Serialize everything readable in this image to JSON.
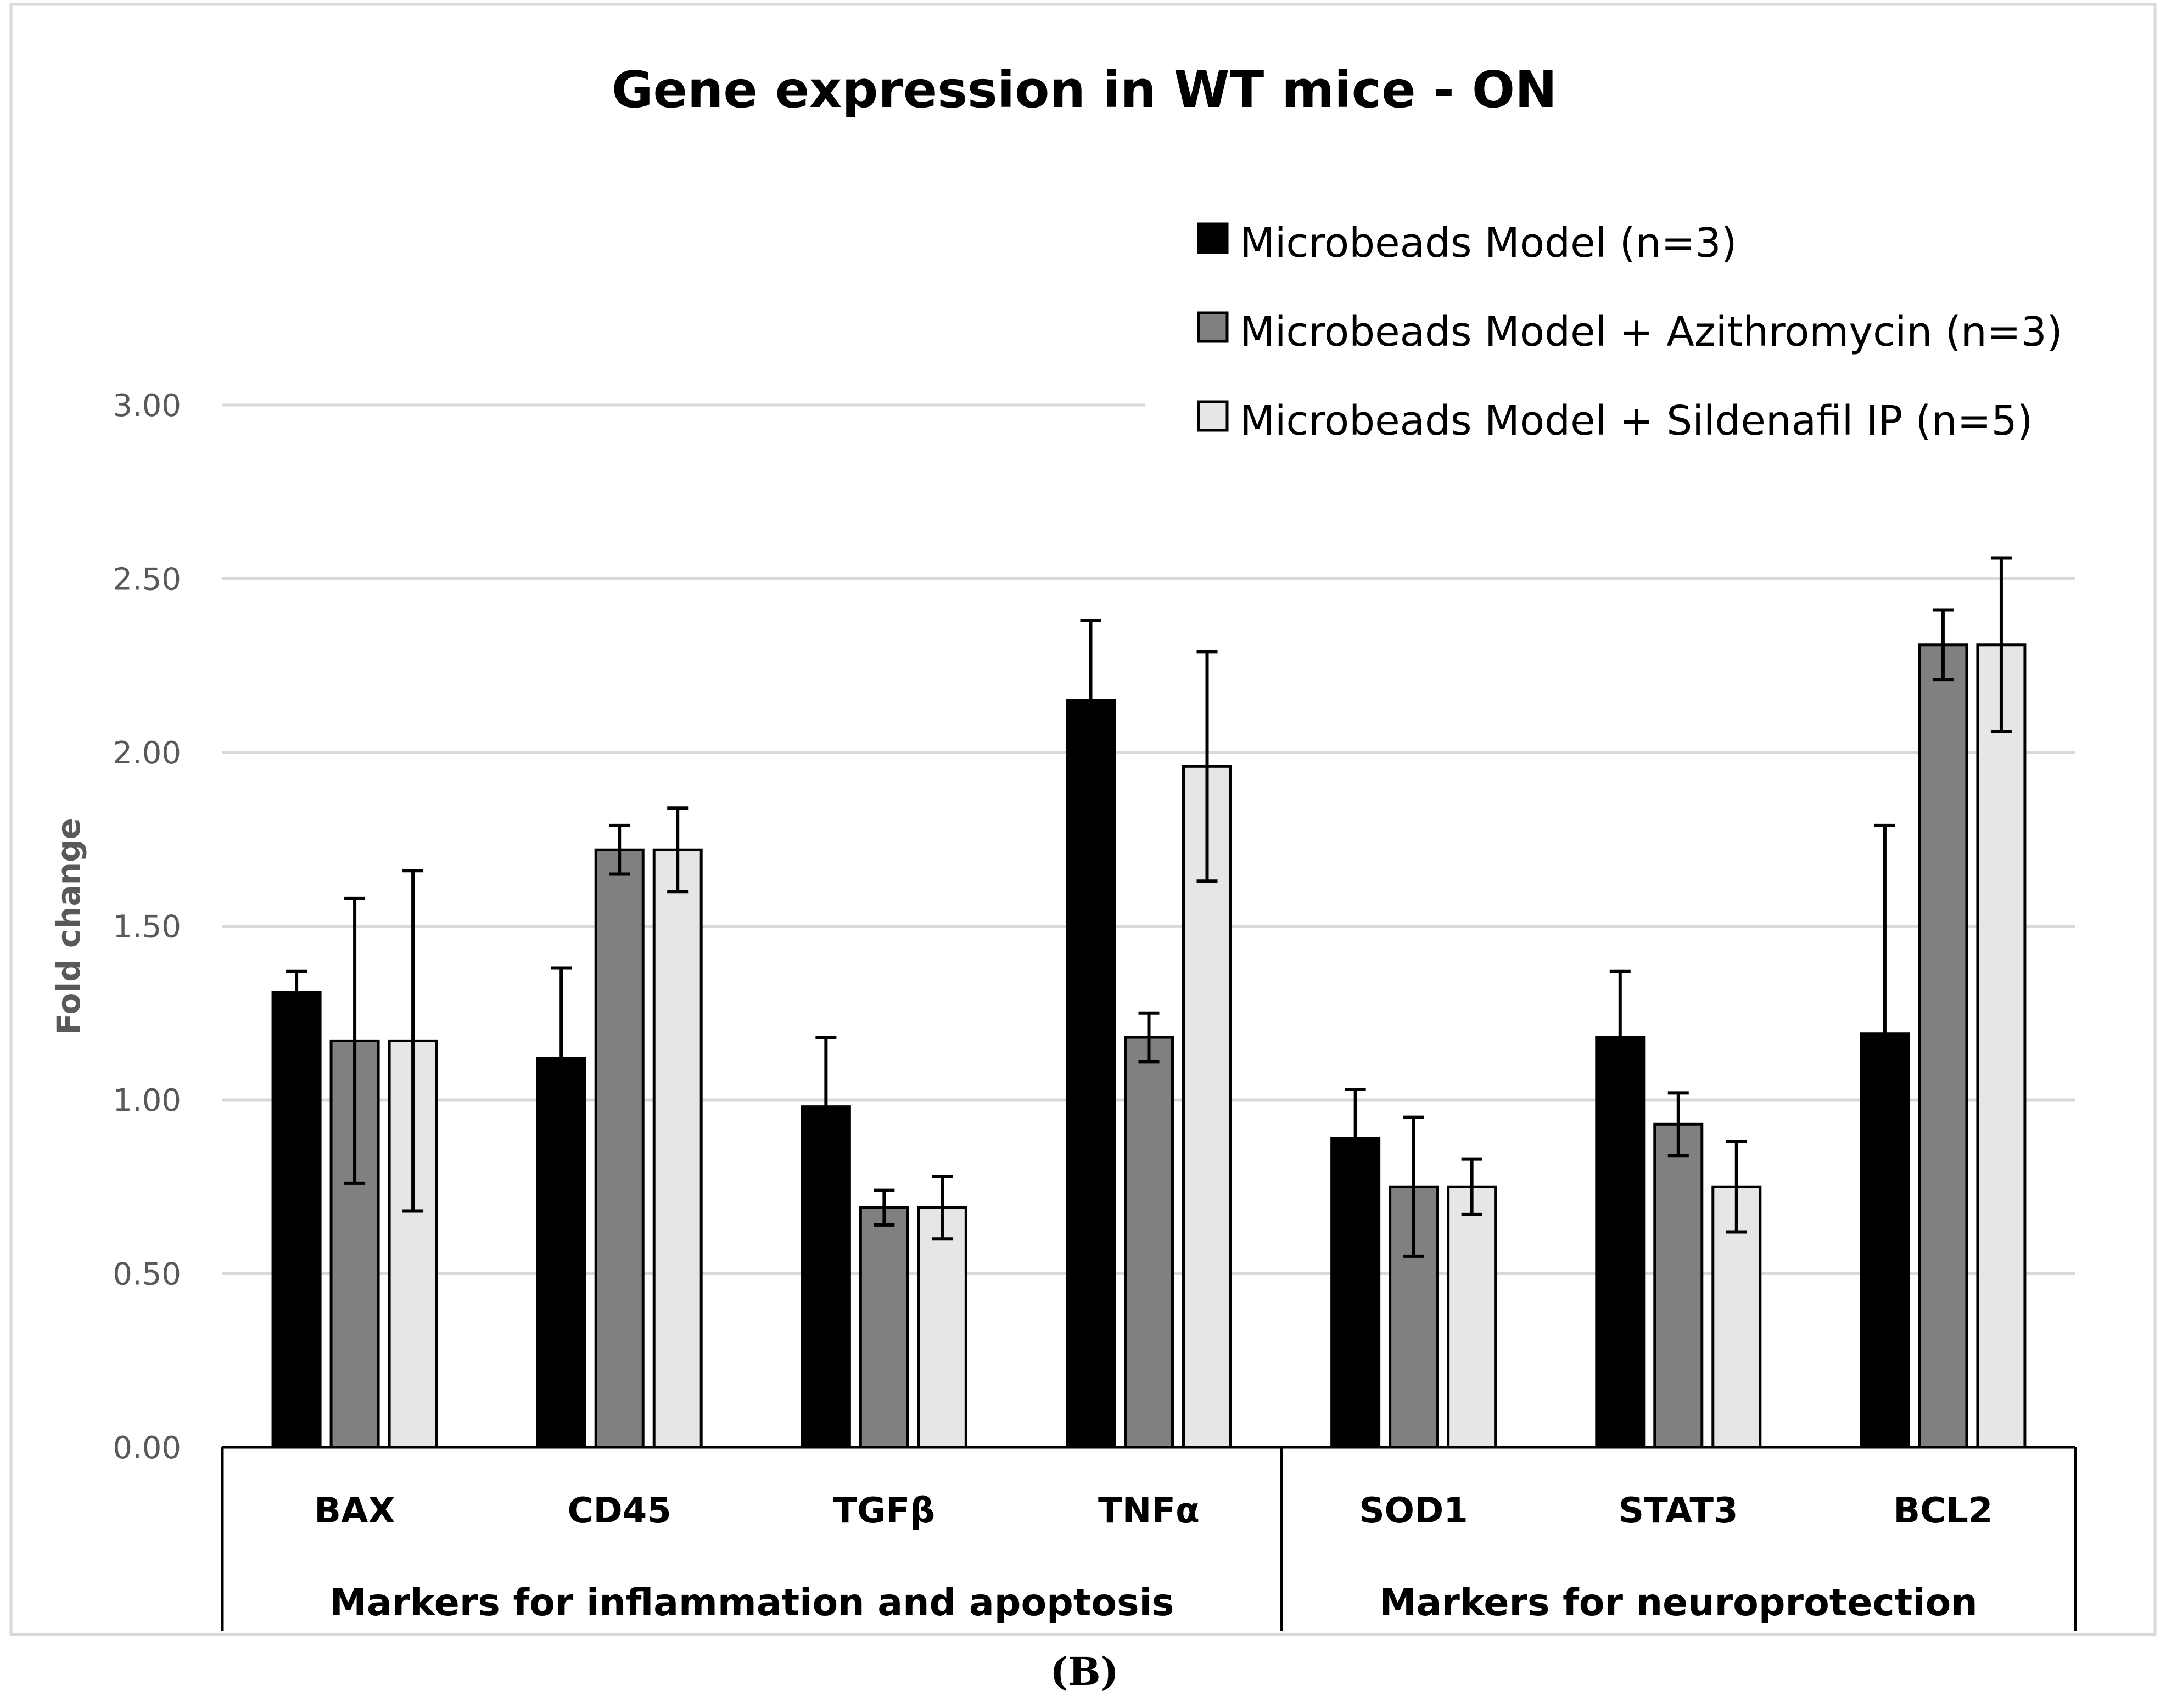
{
  "panel_label": "(B)",
  "chart_data": {
    "type": "bar",
    "title": "Gene expression in WT mice - ON",
    "xlabel": "",
    "ylabel": "Fold change",
    "ylim": [
      0,
      3
    ],
    "yticks": [
      "0.00",
      "0.50",
      "1.00",
      "1.50",
      "2.00",
      "2.50",
      "3.00"
    ],
    "grid": true,
    "legend_position": "top-right",
    "categories": [
      "BAX",
      "CD45",
      "TGFβ",
      "TNFα",
      "SOD1",
      "STAT3",
      "BCL2"
    ],
    "category_groups": [
      {
        "label": "Markers for inflammation and apoptosis",
        "categories": [
          "BAX",
          "CD45",
          "TGFβ",
          "TNFα"
        ]
      },
      {
        "label": "Markers for neuroprotection",
        "categories": [
          "SOD1",
          "STAT3",
          "BCL2"
        ]
      }
    ],
    "series": [
      {
        "name": "Microbeads Model (n=3)",
        "color": "#000000",
        "values": [
          1.31,
          1.12,
          0.98,
          2.15,
          0.89,
          1.18,
          1.19
        ],
        "errors": [
          0.06,
          0.26,
          0.2,
          0.23,
          0.14,
          0.19,
          0.6
        ]
      },
      {
        "name": "Microbeads Model + Azithromycin (n=3)",
        "color": "#808080",
        "values": [
          1.17,
          1.72,
          0.69,
          1.18,
          0.75,
          0.93,
          2.31
        ],
        "errors": [
          0.41,
          0.07,
          0.05,
          0.07,
          0.2,
          0.09,
          0.1
        ]
      },
      {
        "name": "Microbeads Model + Sildenafil IP (n=5)",
        "color": "#e6e6e6",
        "values": [
          1.17,
          1.72,
          0.69,
          1.96,
          0.75,
          0.75,
          2.31
        ],
        "errors": [
          0.49,
          0.12,
          0.09,
          0.33,
          0.08,
          0.13,
          0.25
        ]
      }
    ]
  }
}
